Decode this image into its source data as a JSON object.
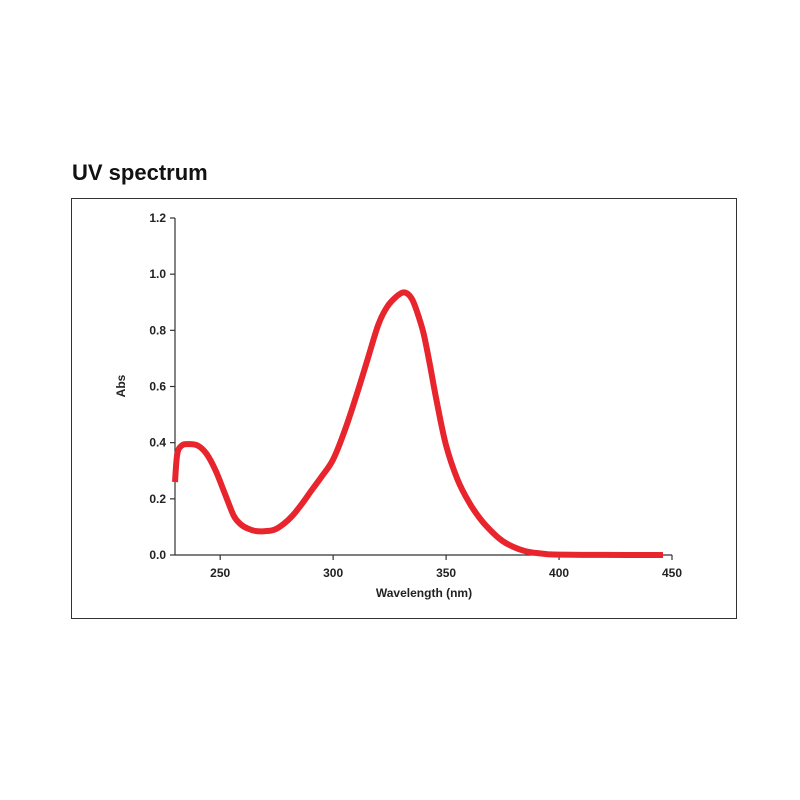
{
  "chart_data": {
    "type": "line",
    "title": "UV spectrum",
    "xlabel": "Wavelength (nm)",
    "ylabel": "Abs",
    "xlim": [
      230,
      450
    ],
    "ylim": [
      0,
      1.2
    ],
    "x_ticks": [
      250,
      300,
      350,
      400,
      450
    ],
    "y_ticks": [
      0.0,
      0.2,
      0.4,
      0.6,
      0.8,
      1.0,
      1.2
    ],
    "x_tick_labels": [
      "250",
      "300",
      "350",
      "400",
      "450"
    ],
    "y_tick_labels": [
      "0.0",
      "0.2",
      "0.4",
      "0.6",
      "0.8",
      "1.0",
      "1.2"
    ],
    "grid": false,
    "series": [
      {
        "color": "#e8242c",
        "x": [
          230,
          231,
          233,
          236,
          240,
          244,
          248,
          252,
          256,
          259,
          262,
          266,
          270,
          274,
          278,
          282,
          286,
          290,
          295,
          300,
          305,
          310,
          315,
          320,
          324,
          328,
          331,
          333,
          335,
          337,
          340,
          343,
          346,
          350,
          355,
          360,
          365,
          370,
          375,
          380,
          385,
          390,
          395,
          400,
          410,
          420,
          430,
          440,
          446
        ],
        "y": [
          0.26,
          0.36,
          0.39,
          0.395,
          0.39,
          0.36,
          0.3,
          0.22,
          0.14,
          0.11,
          0.095,
          0.085,
          0.085,
          0.09,
          0.11,
          0.14,
          0.18,
          0.225,
          0.28,
          0.34,
          0.44,
          0.56,
          0.69,
          0.82,
          0.885,
          0.92,
          0.935,
          0.93,
          0.91,
          0.87,
          0.79,
          0.67,
          0.54,
          0.39,
          0.27,
          0.19,
          0.13,
          0.085,
          0.05,
          0.028,
          0.014,
          0.007,
          0.003,
          0.0015,
          0.0005,
          0.0002,
          0.0001,
          0.0,
          0.0
        ]
      }
    ]
  }
}
